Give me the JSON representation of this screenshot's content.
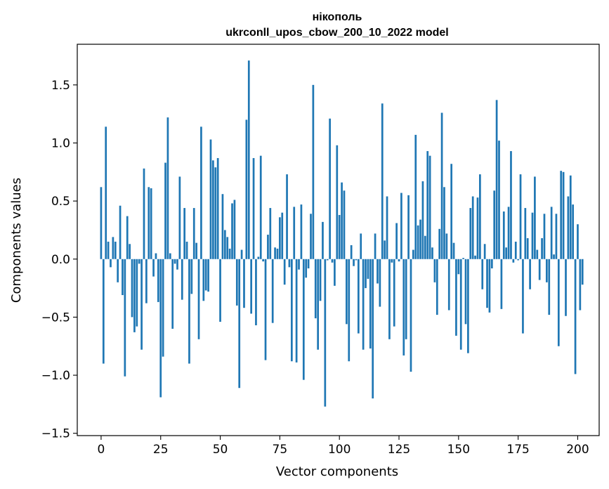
{
  "chart_data": {
    "type": "bar",
    "title_line1": "нікополь",
    "title_line2": "ukrconll_upos_cbow_200_10_2022 model",
    "xlabel": "Vector components",
    "ylabel": "Components values",
    "xlim": [
      -10,
      209
    ],
    "ylim": [
      -1.52,
      1.85
    ],
    "xticks": [
      0,
      25,
      50,
      75,
      100,
      125,
      150,
      175,
      200
    ],
    "yticks": [
      -1.5,
      -1.0,
      -0.5,
      0.0,
      0.5,
      1.0,
      1.5
    ],
    "ytick_labels": [
      "−1.5",
      "−1.0",
      "−0.5",
      "0.0",
      "0.5",
      "1.0",
      "1.5"
    ],
    "bar_color": "#1f77b4",
    "grid": false,
    "values": [
      0.62,
      -0.9,
      1.14,
      0.15,
      -0.07,
      0.19,
      0.15,
      -0.2,
      0.46,
      -0.31,
      -1.01,
      0.37,
      0.13,
      -0.5,
      -0.63,
      -0.58,
      -0.04,
      -0.78,
      0.78,
      -0.38,
      0.62,
      0.61,
      -0.15,
      0.05,
      -0.37,
      -1.19,
      -0.84,
      0.83,
      1.22,
      0.05,
      -0.6,
      -0.04,
      -0.09,
      0.71,
      -0.35,
      0.44,
      0.15,
      -0.9,
      -0.3,
      0.44,
      0.14,
      -0.69,
      1.14,
      -0.36,
      -0.27,
      -0.28,
      1.03,
      0.85,
      0.79,
      0.87,
      -0.54,
      0.56,
      0.25,
      0.19,
      0.09,
      0.48,
      0.51,
      -0.4,
      -1.11,
      0.08,
      -0.42,
      1.2,
      1.71,
      -0.47,
      0.87,
      -0.57,
      0.02,
      0.89,
      -0.02,
      -0.87,
      0.21,
      0.44,
      -0.55,
      0.1,
      0.09,
      0.36,
      0.4,
      -0.22,
      0.73,
      -0.07,
      -0.88,
      0.45,
      -0.89,
      -0.09,
      0.47,
      -1.04,
      -0.16,
      -0.08,
      0.39,
      1.5,
      -0.51,
      -0.78,
      -0.36,
      0.32,
      -1.27,
      -0.01,
      1.21,
      -0.03,
      -0.23,
      0.98,
      0.38,
      0.66,
      0.59,
      -0.56,
      -0.88,
      0.12,
      -0.06,
      -0.01,
      -0.64,
      0.22,
      -0.78,
      -0.25,
      -0.17,
      -0.77,
      -1.2,
      0.22,
      -0.21,
      -0.41,
      1.34,
      0.16,
      0.54,
      -0.69,
      -0.03,
      -0.58,
      0.31,
      -0.02,
      0.57,
      -0.83,
      -0.69,
      0.55,
      -0.97,
      0.08,
      1.07,
      0.29,
      0.34,
      0.67,
      0.2,
      0.93,
      0.89,
      0.1,
      -0.2,
      -0.48,
      0.26,
      1.26,
      0.62,
      0.22,
      -0.44,
      0.82,
      0.14,
      -0.66,
      -0.13,
      -0.78,
      0.01,
      -0.56,
      -0.81,
      0.44,
      0.54,
      0.03,
      0.53,
      0.73,
      -0.26,
      0.13,
      -0.42,
      -0.46,
      -0.08,
      0.59,
      1.37,
      1.02,
      -0.43,
      0.41,
      0.1,
      0.45,
      0.93,
      -0.03,
      0.15,
      -0.01,
      0.73,
      -0.64,
      0.44,
      0.18,
      -0.26,
      0.4,
      0.71,
      0.08,
      -0.18,
      0.18,
      0.39,
      -0.2,
      -0.48,
      0.45,
      0.04,
      0.39,
      -0.75,
      0.76,
      0.75,
      -0.49,
      0.54,
      0.72,
      0.47,
      -0.99,
      0.3,
      -0.44,
      -0.22
    ]
  }
}
